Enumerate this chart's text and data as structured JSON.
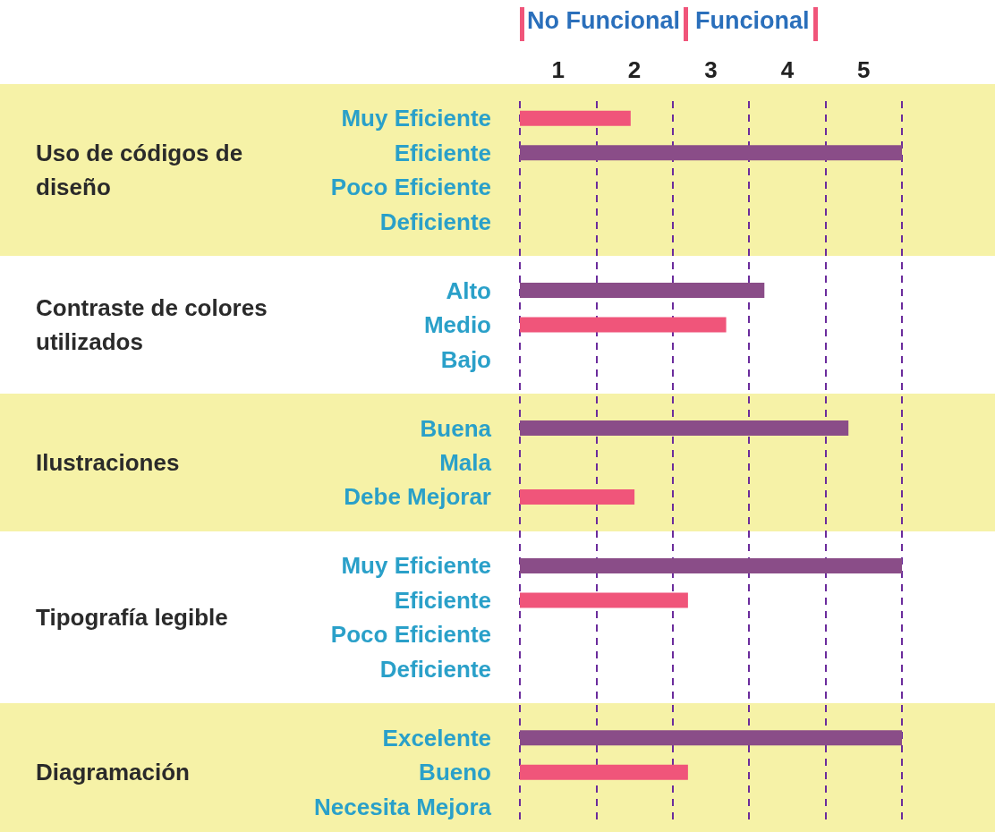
{
  "chart_data": {
    "type": "bar",
    "orientation": "horizontal",
    "categories": [
      "Muy Eficiente",
      "Eficiente",
      "Poco Eficiente",
      "Deficiente",
      null,
      "Alto",
      "Medio",
      "Bajo",
      null,
      "Buena",
      "Mala",
      "Debe Mejorar",
      null,
      "Muy Eficiente",
      "Eficiente",
      "Poco Eficiente",
      "Deficiente",
      null,
      "Excelente",
      "Bueno",
      "Necesita Mejora"
    ],
    "values": [
      1.45,
      5,
      null,
      null,
      null,
      3.2,
      2.7,
      null,
      null,
      4.3,
      null,
      1.5,
      null,
      5,
      2.2,
      null,
      null,
      null,
      5,
      2.2,
      null
    ],
    "colors": [
      "#f0557a",
      "#8a4d88",
      null,
      null,
      null,
      "#8a4d88",
      "#f0557a",
      null,
      null,
      "#8a4d88",
      null,
      "#f0557a",
      null,
      "#8a4d88",
      "#f0557a",
      null,
      null,
      null,
      "#8a4d88",
      "#f0557a",
      null
    ],
    "xlim": [
      0,
      5
    ],
    "xticks": [
      {
        "value": 0,
        "label": null
      },
      {
        "value": 0.5,
        "label": "1"
      },
      {
        "value": 1,
        "label": null
      },
      {
        "value": 1.5,
        "label": "2"
      },
      {
        "value": 2,
        "label": null
      },
      {
        "value": 2.5,
        "label": "3"
      },
      {
        "value": 3,
        "label": null
      },
      {
        "value": 3.5,
        "label": "4"
      },
      {
        "value": 4,
        "label": null
      },
      {
        "value": 4.5,
        "label": "5"
      },
      {
        "value": 5,
        "label": null
      }
    ],
    "grid": "x",
    "annotations": [
      "No Funcional",
      "Funcional",
      "Uso de códigos de diseño",
      "Contraste de colores utilizados",
      "Ilustraciones",
      "Tipografía legible",
      "Diagramación"
    ]
  }
}
